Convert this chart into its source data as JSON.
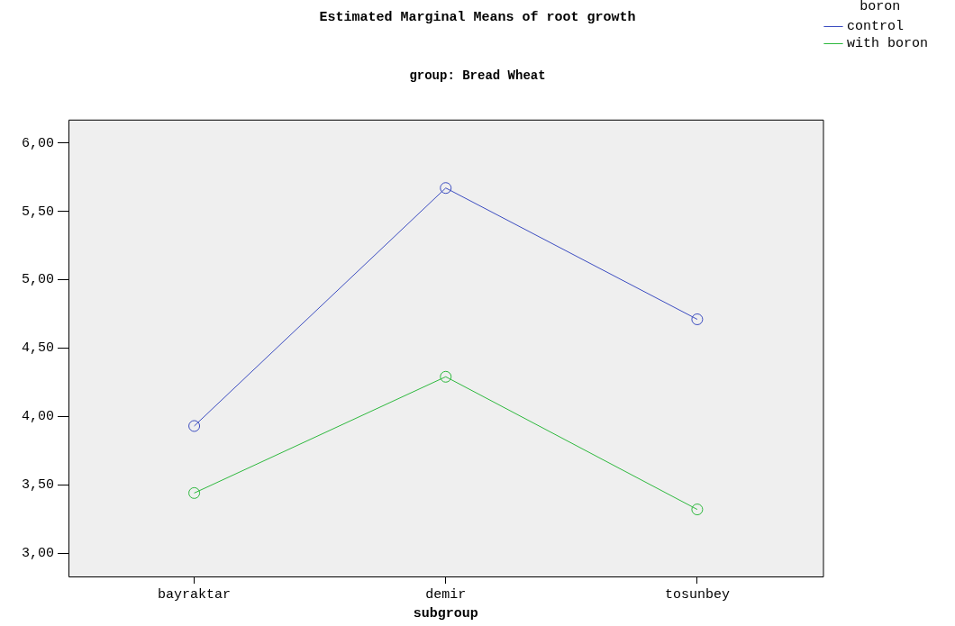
{
  "chart_data": {
    "type": "line",
    "title": "Estimated Marginal Means of root growth",
    "subtitle": "group: Bread Wheat",
    "xlabel": "subgroup",
    "legend_title": "boron",
    "categories": [
      "bayraktar",
      "demir",
      "tosunbey"
    ],
    "series": [
      {
        "name": "control",
        "color": "#3b4cc0",
        "values": [
          3.93,
          5.67,
          4.71
        ]
      },
      {
        "name": "with boron",
        "color": "#2db83d",
        "values": [
          3.44,
          4.29,
          3.32
        ]
      }
    ],
    "ylim": [
      2.83,
      6.17
    ],
    "yticks": [
      {
        "value": 3,
        "label": "3,00"
      },
      {
        "value": 3.5,
        "label": "3,50"
      },
      {
        "value": 4,
        "label": "4,00"
      },
      {
        "value": 4.5,
        "label": "4,50"
      },
      {
        "value": 5,
        "label": "5,00"
      },
      {
        "value": 5.5,
        "label": "5,50"
      },
      {
        "value": 6,
        "label": "6,00"
      }
    ],
    "grid": false,
    "legend": "right",
    "marker": "circle",
    "line_style": "solid"
  }
}
